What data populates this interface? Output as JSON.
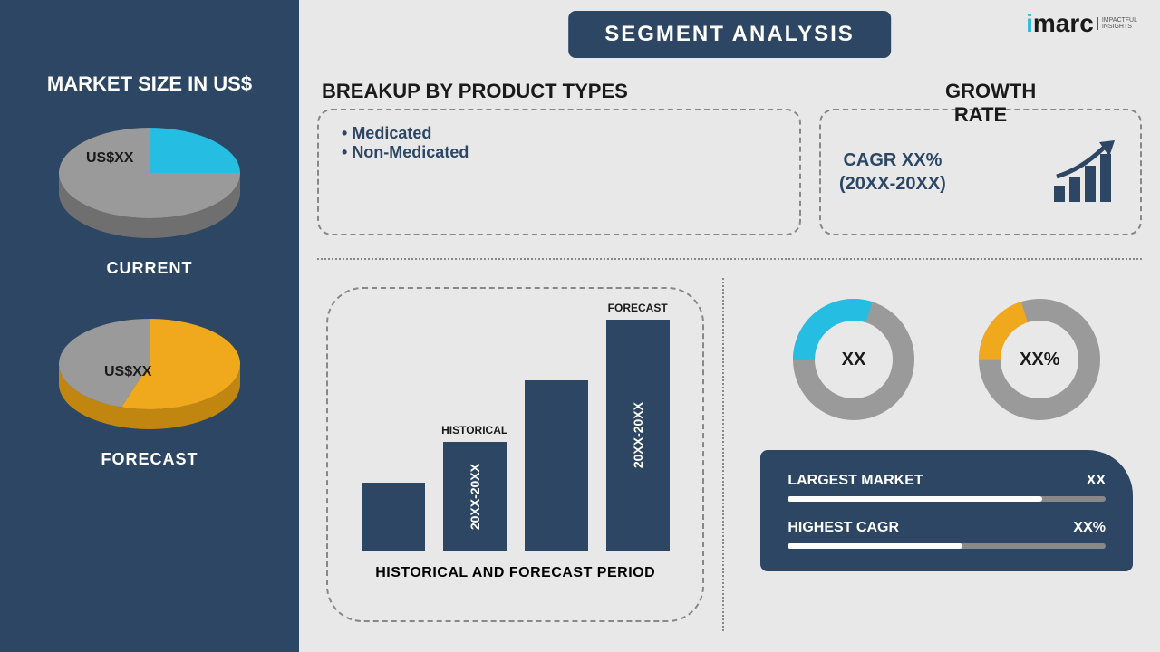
{
  "logo": {
    "brand_i": "i",
    "brand_rest": "marc",
    "tagline1": "IMPACTFUL",
    "tagline2": "INSIGHTS"
  },
  "banner": "SEGMENT ANALYSIS",
  "left": {
    "title": "MARKET SIZE IN US$",
    "pie1": {
      "label": "CURRENT",
      "value": "US$XX",
      "slice_pct": 25,
      "colors": {
        "main": "#9a9a9a",
        "slice": "#26bde2",
        "side": "#6f6f6f"
      },
      "value_color": "#1a1a1a",
      "value_x": 40,
      "value_y": 30
    },
    "pie2": {
      "label": "FORECAST",
      "value": "US$XX",
      "slice_pct": 55,
      "colors": {
        "main": "#9a9a9a",
        "slice": "#f0a81c",
        "side": "#c0860f"
      },
      "value_color": "#1a1a1a",
      "value_x": 60,
      "value_y": 55
    }
  },
  "breakup": {
    "title": "BREAKUP BY PRODUCT TYPES",
    "items": [
      "Medicated",
      "Non-Medicated"
    ]
  },
  "growth": {
    "title": "GROWTH RATE",
    "line1": "CAGR XX%",
    "line2": "(20XX-20XX)",
    "bar_color": "#2c4664",
    "arrow_color": "#2c4664"
  },
  "hist_chart": {
    "bars": [
      {
        "height_pct": 28,
        "label": "",
        "top": ""
      },
      {
        "height_pct": 45,
        "label": "20XX-20XX",
        "top": "HISTORICAL"
      },
      {
        "height_pct": 70,
        "label": "",
        "top": ""
      },
      {
        "height_pct": 95,
        "label": "20XX-20XX",
        "top": "FORECAST"
      }
    ],
    "caption": "HISTORICAL AND FORECAST PERIOD",
    "bar_color": "#2c4664"
  },
  "donuts": {
    "d1": {
      "pct": 30,
      "fg": "#26bde2",
      "bg": "#9a9a9a",
      "center": "XX"
    },
    "d2": {
      "pct": 20,
      "fg": "#f0a81c",
      "bg": "#9a9a9a",
      "center": "XX%"
    }
  },
  "info": {
    "row1": {
      "label": "LARGEST MARKET",
      "value": "XX",
      "fill_pct": 80
    },
    "row2": {
      "label": "HIGHEST CAGR",
      "value": "XX%",
      "fill_pct": 55
    }
  }
}
